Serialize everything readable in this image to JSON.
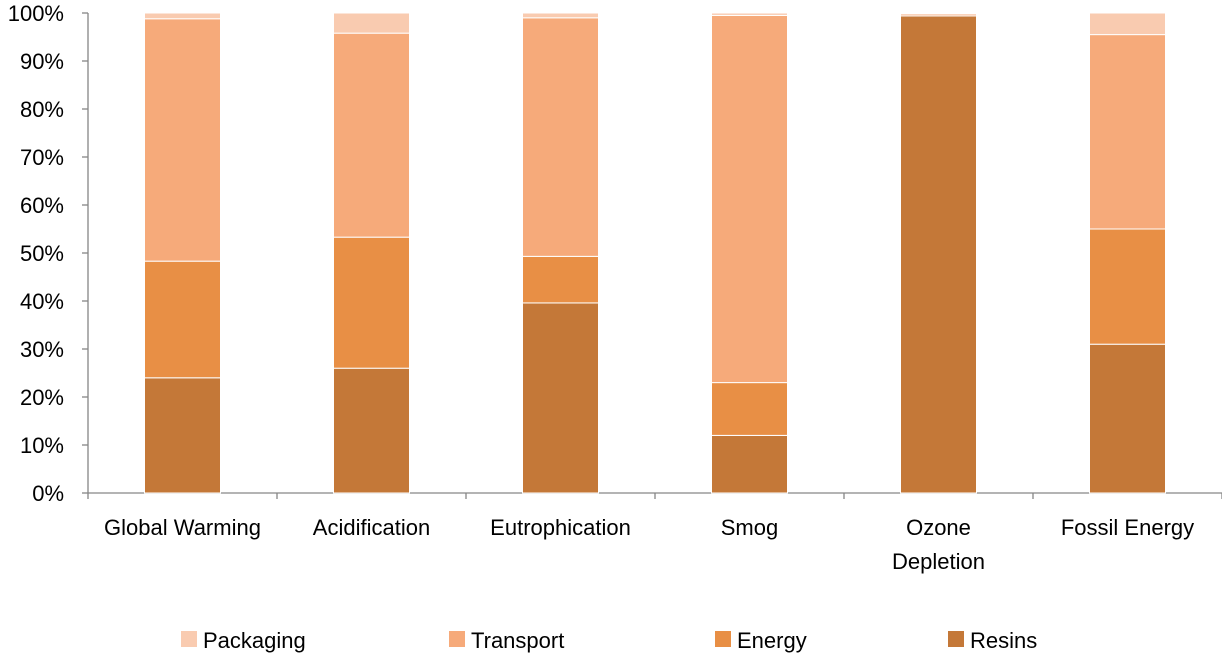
{
  "chart_data": {
    "type": "bar",
    "stacked": true,
    "percent": true,
    "categories": [
      "Global Warming",
      "Acidification",
      "Eutrophication",
      "Smog",
      "Ozone Depletion",
      "Fossil Energy"
    ],
    "category_lines": [
      [
        "Global Warming"
      ],
      [
        "Acidification"
      ],
      [
        "Eutrophication"
      ],
      [
        "Smog"
      ],
      [
        "Ozone",
        "Depletion"
      ],
      [
        "Fossil Energy"
      ]
    ],
    "series": [
      {
        "name": "Resins",
        "color": "#C47838",
        "values": [
          24,
          26,
          39.6,
          12,
          99.4,
          31
        ]
      },
      {
        "name": "Energy",
        "color": "#E88F45",
        "values": [
          24.3,
          27.3,
          9.7,
          11,
          0,
          24
        ]
      },
      {
        "name": "Transport",
        "color": "#F6AA7A",
        "values": [
          50.5,
          42.5,
          49.7,
          76.5,
          0.4,
          40.5
        ]
      },
      {
        "name": "Packaging",
        "color": "#F9CBB0",
        "values": [
          1.2,
          4.2,
          1.0,
          0.5,
          0.2,
          4.5
        ]
      }
    ],
    "legend_order": [
      "Packaging",
      "Transport",
      "Energy",
      "Resins"
    ],
    "legend_position": "bottom",
    "ylim": [
      0,
      100
    ],
    "yticks": [
      0,
      10,
      20,
      30,
      40,
      50,
      60,
      70,
      80,
      90,
      100
    ],
    "ytick_labels": [
      "0%",
      "10%",
      "20%",
      "30%",
      "40%",
      "50%",
      "60%",
      "70%",
      "80%",
      "90%",
      "100%"
    ],
    "grid": false,
    "title": "",
    "xlabel": "",
    "ylabel": ""
  }
}
